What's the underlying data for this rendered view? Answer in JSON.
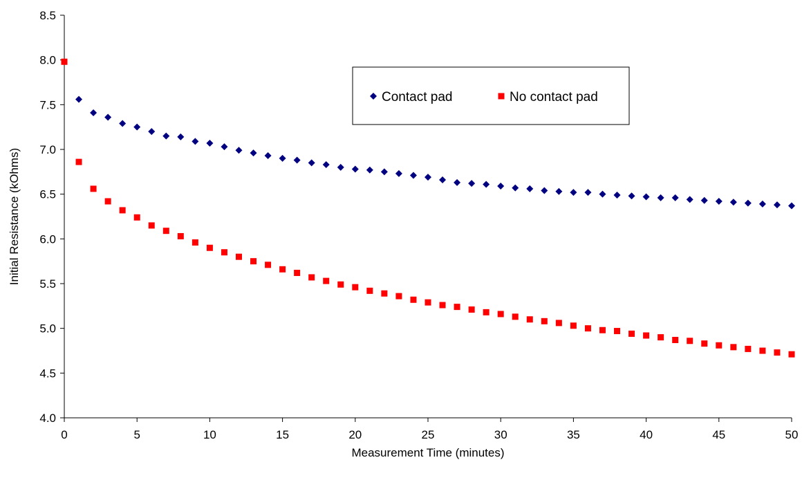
{
  "chart_data": {
    "type": "scatter",
    "title": "",
    "xlabel": "Measurement Time (minutes)",
    "ylabel": "Initial Resistance (kOhms)",
    "xlim": [
      0,
      50
    ],
    "ylim": [
      4.0,
      8.5
    ],
    "x_ticks": [
      "0",
      "5",
      "10",
      "15",
      "20",
      "25",
      "30",
      "35",
      "40",
      "45",
      "50"
    ],
    "y_ticks": [
      "4.0",
      "4.5",
      "5.0",
      "5.5",
      "6.0",
      "6.5",
      "7.0",
      "7.5",
      "8.0",
      "8.5"
    ],
    "grid": false,
    "legend_position": "top-right",
    "series": [
      {
        "name": "Contact pad",
        "marker": "diamond",
        "color": "#000080",
        "x": [
          1,
          2,
          3,
          4,
          5,
          6,
          7,
          8,
          9,
          10,
          11,
          12,
          13,
          14,
          15,
          16,
          17,
          18,
          19,
          20,
          21,
          22,
          23,
          24,
          25,
          26,
          27,
          28,
          29,
          30,
          31,
          32,
          33,
          34,
          35,
          36,
          37,
          38,
          39,
          40,
          41,
          42,
          43,
          44,
          45,
          46,
          47,
          48,
          49,
          50
        ],
        "y": [
          7.56,
          7.41,
          7.36,
          7.29,
          7.25,
          7.2,
          7.15,
          7.14,
          7.09,
          7.07,
          7.03,
          6.99,
          6.96,
          6.93,
          6.9,
          6.88,
          6.85,
          6.83,
          6.8,
          6.78,
          6.77,
          6.75,
          6.73,
          6.71,
          6.69,
          6.66,
          6.63,
          6.62,
          6.61,
          6.59,
          6.57,
          6.56,
          6.54,
          6.53,
          6.52,
          6.52,
          6.5,
          6.49,
          6.48,
          6.47,
          6.46,
          6.46,
          6.44,
          6.43,
          6.42,
          6.41,
          6.4,
          6.39,
          6.38,
          6.37
        ]
      },
      {
        "name": "No contact pad",
        "marker": "square",
        "color": "#ff0000",
        "x": [
          0,
          1,
          2,
          3,
          4,
          5,
          6,
          7,
          8,
          9,
          10,
          11,
          12,
          13,
          14,
          15,
          16,
          17,
          18,
          19,
          20,
          21,
          22,
          23,
          24,
          25,
          26,
          27,
          28,
          29,
          30,
          31,
          32,
          33,
          34,
          35,
          36,
          37,
          38,
          39,
          40,
          41,
          42,
          43,
          44,
          45,
          46,
          47,
          48,
          49,
          50
        ],
        "y": [
          7.98,
          6.86,
          6.56,
          6.42,
          6.32,
          6.24,
          6.15,
          6.09,
          6.03,
          5.96,
          5.9,
          5.85,
          5.8,
          5.75,
          5.71,
          5.66,
          5.62,
          5.57,
          5.53,
          5.49,
          5.46,
          5.42,
          5.39,
          5.36,
          5.32,
          5.29,
          5.26,
          5.24,
          5.21,
          5.18,
          5.16,
          5.13,
          5.1,
          5.08,
          5.06,
          5.03,
          5.0,
          4.98,
          4.97,
          4.94,
          4.92,
          4.9,
          4.87,
          4.86,
          4.83,
          4.81,
          4.79,
          4.77,
          4.75,
          4.73,
          4.71
        ]
      }
    ]
  }
}
